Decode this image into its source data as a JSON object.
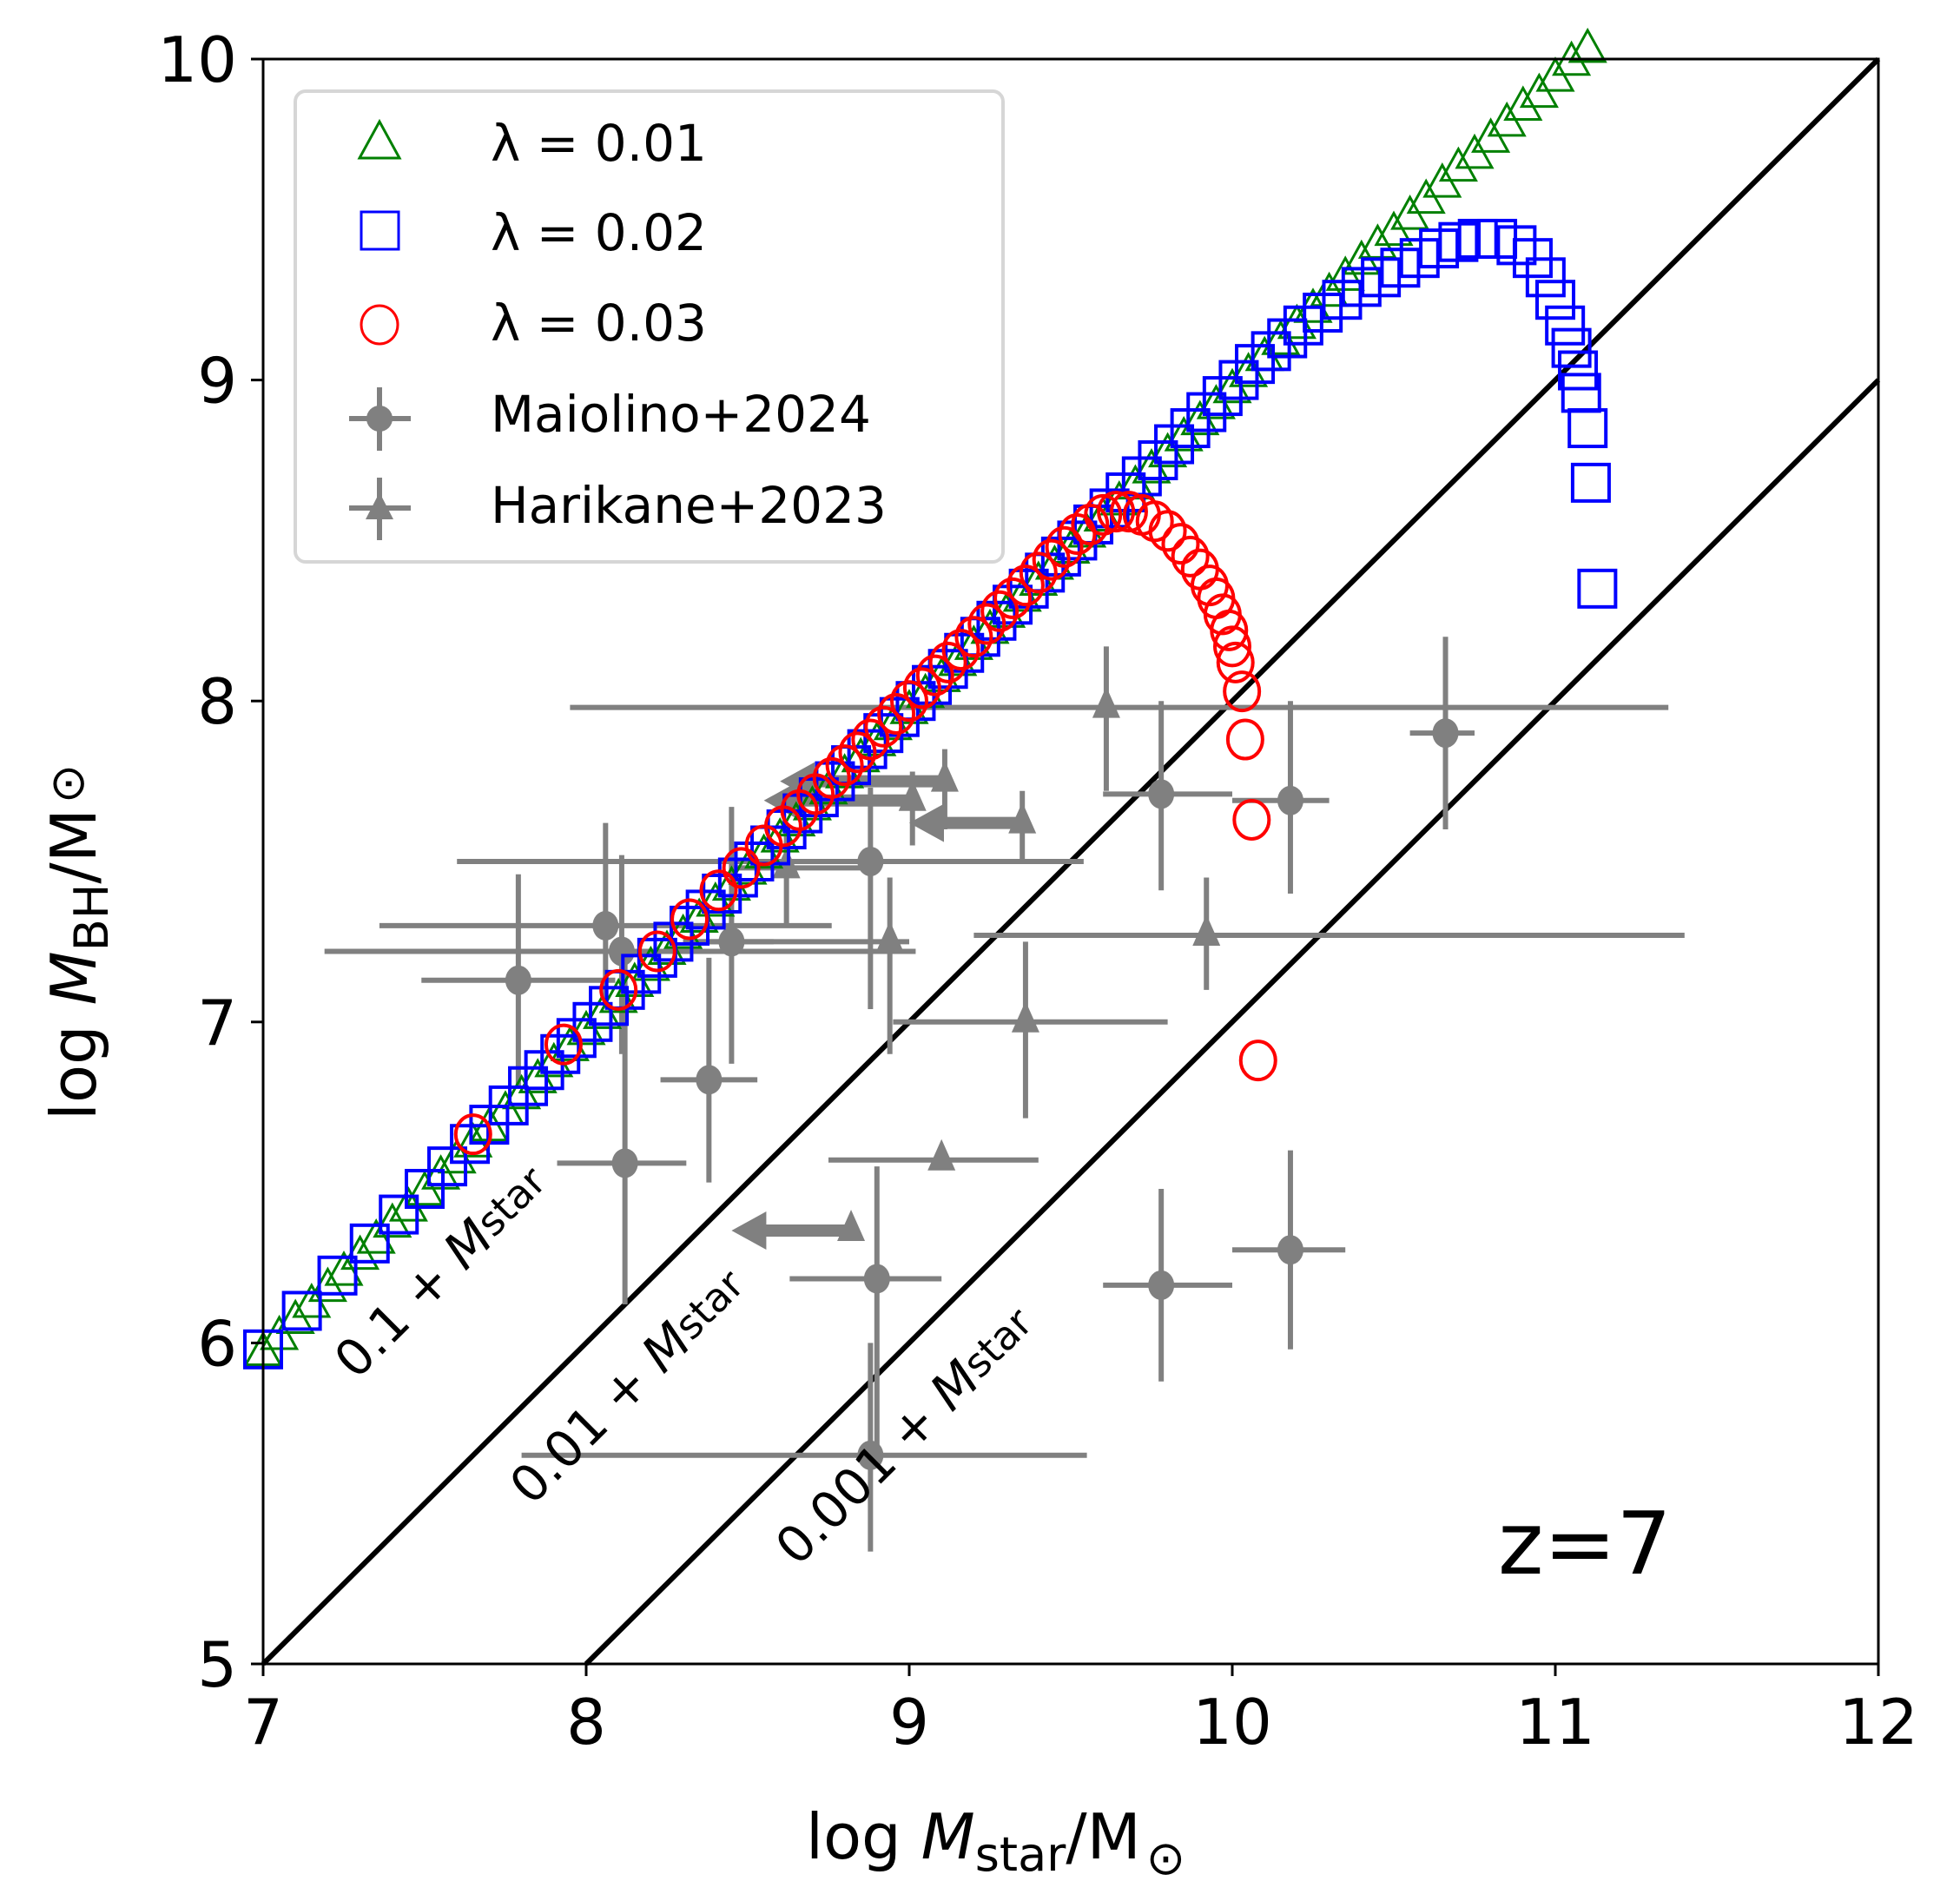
{
  "chart_data": {
    "type": "scatter",
    "title": "",
    "xlabel": {
      "prefix": "log ",
      "var": "M",
      "sub": "star",
      "suffix": "/M",
      "sun": "⊙"
    },
    "ylabel": {
      "prefix": "log ",
      "var": "M",
      "sub": "BH",
      "suffix": "/M",
      "sun": "⊙"
    },
    "xlim": [
      7,
      12
    ],
    "ylim": [
      5,
      10
    ],
    "xticks": [
      7,
      8,
      9,
      10,
      11,
      12
    ],
    "yticks": [
      5,
      6,
      7,
      8,
      9,
      10
    ],
    "xtick_labels": [
      "7",
      "8",
      "9",
      "10",
      "11",
      "12"
    ],
    "ytick_labels": [
      "5",
      "6",
      "7",
      "8",
      "9",
      "10"
    ],
    "grid": false,
    "legend_position": "top-left",
    "annotation": "z=7",
    "relation_lines": [
      {
        "label_num": "0.1",
        "label_plus": "+",
        "label_M": "M",
        "label_sub": "star",
        "ratio": 0.1,
        "drawn": false
      },
      {
        "label_num": "0.01",
        "label_plus": "+",
        "label_M": "M",
        "label_sub": "star",
        "ratio": 0.01,
        "drawn": true
      },
      {
        "label_num": "0.001",
        "label_plus": "+",
        "label_M": "M",
        "label_sub": "star",
        "ratio": 0.001,
        "drawn": true
      }
    ],
    "series": [
      {
        "name": "λ = 0.01",
        "marker": "triangle",
        "color": "#008000",
        "x": [
          7.0,
          7.05,
          7.1,
          7.15,
          7.2,
          7.25,
          7.3,
          7.35,
          7.4,
          7.45,
          7.5,
          7.55,
          7.6,
          7.65,
          7.7,
          7.75,
          7.8,
          7.85,
          7.9,
          7.95,
          8.0,
          8.05,
          8.1,
          8.15,
          8.2,
          8.25,
          8.3,
          8.35,
          8.4,
          8.45,
          8.5,
          8.55,
          8.6,
          8.65,
          8.7,
          8.75,
          8.8,
          8.85,
          8.9,
          8.95,
          9.0,
          9.05,
          9.1,
          9.15,
          9.2,
          9.25,
          9.3,
          9.35,
          9.4,
          9.45,
          9.5,
          9.55,
          9.6,
          9.65,
          9.7,
          9.75,
          9.8,
          9.85,
          9.9,
          9.95,
          10.0,
          10.05,
          10.1,
          10.15,
          10.2,
          10.25,
          10.3,
          10.35,
          10.4,
          10.45,
          10.5,
          10.55,
          10.6,
          10.65,
          10.7,
          10.75,
          10.8,
          10.85,
          10.9,
          10.95,
          11.0,
          11.05,
          11.1
        ],
        "y": [
          5.97,
          6.02,
          6.07,
          6.12,
          6.17,
          6.22,
          6.27,
          6.32,
          6.37,
          6.42,
          6.47,
          6.52,
          6.57,
          6.62,
          6.67,
          6.72,
          6.77,
          6.82,
          6.87,
          6.92,
          6.97,
          7.02,
          7.07,
          7.12,
          7.17,
          7.22,
          7.27,
          7.32,
          7.37,
          7.42,
          7.47,
          7.52,
          7.57,
          7.62,
          7.67,
          7.72,
          7.77,
          7.82,
          7.87,
          7.92,
          7.97,
          8.02,
          8.07,
          8.12,
          8.17,
          8.22,
          8.27,
          8.32,
          8.37,
          8.42,
          8.47,
          8.52,
          8.57,
          8.62,
          8.67,
          8.72,
          8.77,
          8.82,
          8.87,
          8.92,
          8.97,
          9.02,
          9.07,
          9.12,
          9.17,
          9.22,
          9.27,
          9.32,
          9.37,
          9.42,
          9.46,
          9.51,
          9.56,
          9.61,
          9.66,
          9.7,
          9.75,
          9.8,
          9.85,
          9.89,
          9.94,
          9.99,
          10.03
        ]
      },
      {
        "name": "λ = 0.02",
        "marker": "square",
        "color": "#0000ff",
        "x": [
          7.0,
          7.12,
          7.23,
          7.33,
          7.42,
          7.5,
          7.57,
          7.64,
          7.7,
          7.76,
          7.82,
          7.87,
          7.92,
          7.97,
          8.02,
          8.07,
          8.12,
          8.17,
          8.22,
          8.27,
          8.32,
          8.37,
          8.42,
          8.47,
          8.52,
          8.57,
          8.62,
          8.67,
          8.72,
          8.77,
          8.82,
          8.87,
          8.92,
          8.97,
          9.02,
          9.07,
          9.12,
          9.17,
          9.22,
          9.27,
          9.32,
          9.37,
          9.42,
          9.47,
          9.52,
          9.57,
          9.62,
          9.67,
          9.72,
          9.77,
          9.82,
          9.87,
          9.92,
          9.97,
          10.02,
          10.07,
          10.12,
          10.17,
          10.22,
          10.28,
          10.34,
          10.4,
          10.46,
          10.52,
          10.58,
          10.64,
          10.7,
          10.76,
          10.82,
          10.88,
          10.93,
          10.97,
          11.0,
          11.03,
          11.05,
          11.07,
          11.08,
          11.1,
          11.11,
          11.13
        ],
        "y": [
          5.98,
          6.1,
          6.21,
          6.31,
          6.4,
          6.48,
          6.55,
          6.62,
          6.68,
          6.74,
          6.8,
          6.85,
          6.9,
          6.95,
          7.0,
          7.05,
          7.1,
          7.15,
          7.2,
          7.25,
          7.3,
          7.35,
          7.4,
          7.45,
          7.5,
          7.55,
          7.6,
          7.65,
          7.7,
          7.75,
          7.8,
          7.85,
          7.9,
          7.95,
          8.0,
          8.05,
          8.1,
          8.15,
          8.2,
          8.25,
          8.3,
          8.35,
          8.4,
          8.45,
          8.5,
          8.55,
          8.6,
          8.65,
          8.7,
          8.75,
          8.8,
          8.85,
          8.9,
          8.95,
          9.0,
          9.05,
          9.09,
          9.13,
          9.17,
          9.21,
          9.25,
          9.29,
          9.32,
          9.35,
          9.38,
          9.41,
          9.43,
          9.44,
          9.44,
          9.42,
          9.38,
          9.32,
          9.25,
          9.17,
          9.1,
          9.03,
          8.96,
          8.85,
          8.68,
          8.35
        ]
      },
      {
        "name": "λ = 0.03",
        "marker": "circle",
        "color": "#ff0000",
        "x": [
          7.65,
          7.93,
          8.1,
          8.22,
          8.32,
          8.41,
          8.48,
          8.55,
          8.61,
          8.66,
          8.71,
          8.76,
          8.8,
          8.84,
          8.88,
          8.92,
          8.96,
          9.0,
          9.04,
          9.08,
          9.12,
          9.16,
          9.2,
          9.24,
          9.28,
          9.32,
          9.36,
          9.4,
          9.44,
          9.48,
          9.52,
          9.56,
          9.6,
          9.64,
          9.68,
          9.72,
          9.76,
          9.8,
          9.84,
          9.87,
          9.9,
          9.93,
          9.95,
          9.97,
          9.99,
          10.0,
          10.01,
          10.03,
          10.04,
          10.06,
          10.08
        ],
        "y": [
          6.65,
          6.93,
          7.1,
          7.22,
          7.32,
          7.41,
          7.48,
          7.55,
          7.61,
          7.66,
          7.71,
          7.76,
          7.8,
          7.84,
          7.88,
          7.92,
          7.96,
          8.0,
          8.04,
          8.08,
          8.12,
          8.16,
          8.2,
          8.24,
          8.28,
          8.32,
          8.36,
          8.4,
          8.44,
          8.48,
          8.52,
          8.55,
          8.58,
          8.59,
          8.59,
          8.58,
          8.56,
          8.53,
          8.49,
          8.45,
          8.41,
          8.36,
          8.32,
          8.27,
          8.22,
          8.17,
          8.12,
          8.03,
          7.88,
          7.63,
          6.88
        ]
      }
    ],
    "observations": [
      {
        "name": "Maiolino+2024",
        "marker": "filled-circle",
        "color": "#808080",
        "points": [
          {
            "x": 7.79,
            "y": 7.13,
            "xlo": 7.49,
            "xhi": 8.09,
            "ylo": 6.8,
            "yhi": 7.46
          },
          {
            "x": 8.06,
            "y": 7.3,
            "xlo": 7.36,
            "xhi": 8.76,
            "ylo": 7.07,
            "yhi": 7.62
          },
          {
            "x": 8.11,
            "y": 7.22,
            "xlo": 7.19,
            "xhi": 9.02,
            "ylo": 6.9,
            "yhi": 7.52
          },
          {
            "x": 8.45,
            "y": 7.25,
            "xlo": 8.33,
            "xhi": 8.58,
            "ylo": 6.87,
            "yhi": 7.67
          },
          {
            "x": 8.38,
            "y": 6.82,
            "xlo": 8.23,
            "xhi": 8.53,
            "ylo": 6.5,
            "yhi": 7.2
          },
          {
            "x": 8.12,
            "y": 6.56,
            "xlo": 7.91,
            "xhi": 8.31,
            "ylo": 6.12,
            "yhi": 7.2
          },
          {
            "x": 8.88,
            "y": 7.5,
            "xlo": 7.6,
            "xhi": 9.54,
            "ylo": 7.04,
            "yhi": 7.73
          },
          {
            "x": 8.9,
            "y": 6.2,
            "xlo": 8.63,
            "xhi": 9.1,
            "ylo": 5.65,
            "yhi": 6.55
          },
          {
            "x": 8.88,
            "y": 5.65,
            "xlo": 7.8,
            "xhi": 9.55,
            "ylo": 5.35,
            "yhi": 6.0
          },
          {
            "x": 9.78,
            "y": 7.71,
            "xlo": 9.6,
            "xhi": 10.0,
            "ylo": 7.41,
            "yhi": 8.0
          },
          {
            "x": 10.18,
            "y": 7.69,
            "xlo": 10.0,
            "xhi": 10.3,
            "ylo": 7.4,
            "yhi": 8.0
          },
          {
            "x": 10.66,
            "y": 7.9,
            "xlo": 10.55,
            "xhi": 10.75,
            "ylo": 7.6,
            "yhi": 8.2
          },
          {
            "x": 9.78,
            "y": 6.18,
            "xlo": 9.6,
            "xhi": 10.0,
            "ylo": 5.88,
            "yhi": 6.48
          },
          {
            "x": 10.18,
            "y": 6.29,
            "xlo": 10.0,
            "xhi": 10.35,
            "ylo": 5.98,
            "yhi": 6.6
          }
        ]
      },
      {
        "name": "Harikane+2023",
        "marker": "filled-triangle",
        "color": "#808080",
        "points": [
          {
            "x": 9.61,
            "y": 7.98,
            "xlo": 7.95,
            "xhi": 11.35,
            "ylo": 7.72,
            "yhi": 8.17
          },
          {
            "x": 9.11,
            "y": 7.75,
            "xlo": 8.6,
            "xhi": 9.11,
            "ylo": 7.6,
            "yhi": 7.85,
            "xuplim": true
          },
          {
            "x": 9.01,
            "y": 7.69,
            "xlo": 8.55,
            "xhi": 9.01,
            "ylo": 7.55,
            "yhi": 7.78,
            "xuplim": true
          },
          {
            "x": 9.35,
            "y": 7.62,
            "xlo": 9.0,
            "xhi": 9.35,
            "ylo": 7.5,
            "yhi": 7.72,
            "xuplim": true
          },
          {
            "x": 8.94,
            "y": 7.25,
            "xlo": 8.3,
            "xhi": 9.0,
            "ylo": 6.9,
            "yhi": 7.45
          },
          {
            "x": 8.62,
            "y": 7.48,
            "xlo": 8.45,
            "xhi": 8.9,
            "ylo": 7.3,
            "yhi": 7.6
          },
          {
            "x": 9.36,
            "y": 7.0,
            "xlo": 8.95,
            "xhi": 9.8,
            "ylo": 6.7,
            "yhi": 7.25
          },
          {
            "x": 9.1,
            "y": 6.57,
            "xlo": 8.75,
            "xhi": 9.4,
            "ylo": 6.57,
            "yhi": 6.57
          },
          {
            "x": 9.92,
            "y": 7.27,
            "xlo": 9.2,
            "xhi": 11.4,
            "ylo": 7.1,
            "yhi": 7.45
          },
          {
            "x": 8.82,
            "y": 6.35,
            "xlo": 8.45,
            "xhi": 8.82,
            "ylo": 6.35,
            "yhi": 6.35,
            "xuplim": true
          }
        ]
      }
    ]
  }
}
